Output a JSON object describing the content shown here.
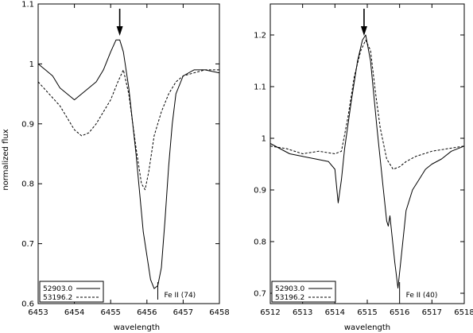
{
  "chart_data": [
    {
      "type": "line",
      "xlabel": "wavelength",
      "ylabel": "normalized flux",
      "xlim": [
        6453,
        6458
      ],
      "ylim": [
        0.6,
        1.1
      ],
      "x_ticks": [
        6453,
        6454,
        6455,
        6456,
        6457,
        6458
      ],
      "y_ticks": [
        0.6,
        0.7,
        0.8,
        0.9,
        1,
        1.1
      ],
      "x_tick_labels": [
        "6453",
        "6454",
        "6455",
        "6456",
        "6457",
        "6458"
      ],
      "y_tick_labels": [
        "0.6",
        "0.7",
        "0.8",
        "0.9",
        "1",
        "1.1"
      ],
      "arrow_x": 6455.25,
      "line_marker": {
        "x": 6456.3,
        "label": "Fe II (74)"
      },
      "legend_position": "bottom-left",
      "series": [
        {
          "name": "52903.0",
          "style": "solid",
          "x": [
            6453.0,
            6453.2,
            6453.4,
            6453.6,
            6453.8,
            6454.0,
            6454.2,
            6454.4,
            6454.6,
            6454.8,
            6455.0,
            6455.15,
            6455.25,
            6455.35,
            6455.5,
            6455.7,
            6455.9,
            6456.1,
            6456.2,
            6456.3,
            6456.4,
            6456.5,
            6456.6,
            6456.7,
            6456.8,
            6457.0,
            6457.3,
            6457.6,
            6458.0
          ],
          "y": [
            1.0,
            0.99,
            0.98,
            0.96,
            0.95,
            0.94,
            0.95,
            0.96,
            0.97,
            0.99,
            1.02,
            1.04,
            1.04,
            1.02,
            0.96,
            0.85,
            0.72,
            0.64,
            0.625,
            0.63,
            0.66,
            0.74,
            0.83,
            0.9,
            0.95,
            0.98,
            0.99,
            0.99,
            0.985
          ]
        },
        {
          "name": "53196.2",
          "style": "dashed",
          "x": [
            6453.0,
            6453.3,
            6453.6,
            6453.8,
            6454.0,
            6454.2,
            6454.4,
            6454.6,
            6454.8,
            6455.0,
            6455.2,
            6455.35,
            6455.5,
            6455.7,
            6455.85,
            6455.95,
            6456.05,
            6456.2,
            6456.4,
            6456.6,
            6456.8,
            6457.0,
            6457.3,
            6457.6,
            6458.0
          ],
          "y": [
            0.97,
            0.95,
            0.93,
            0.91,
            0.89,
            0.88,
            0.885,
            0.9,
            0.92,
            0.94,
            0.97,
            0.99,
            0.95,
            0.86,
            0.8,
            0.79,
            0.82,
            0.88,
            0.92,
            0.95,
            0.97,
            0.98,
            0.985,
            0.99,
            0.99
          ]
        }
      ]
    },
    {
      "type": "line",
      "xlabel": "wavelength",
      "ylabel": "",
      "xlim": [
        6512,
        6518
      ],
      "ylim": [
        0.68,
        1.26
      ],
      "x_ticks": [
        6512,
        6513,
        6514,
        6515,
        6516,
        6517,
        6518
      ],
      "y_ticks": [
        0.7,
        0.8,
        0.9,
        1,
        1.1,
        1.2
      ],
      "x_tick_labels": [
        "6512",
        "6513",
        "6514",
        "6515",
        "6516",
        "6517",
        "6518"
      ],
      "y_tick_labels": [
        "0.7",
        "0.8",
        "0.9",
        "1",
        "1.1",
        "1.2"
      ],
      "arrow_x": 6514.9,
      "line_marker": {
        "x": 6516.0,
        "label": "Fe II (40)"
      },
      "legend_position": "bottom-left",
      "series": [
        {
          "name": "52903.0",
          "style": "solid",
          "x": [
            6512.0,
            6512.3,
            6512.6,
            6513.0,
            6513.4,
            6513.8,
            6514.0,
            6514.1,
            6514.2,
            6514.3,
            6514.5,
            6514.7,
            6514.85,
            6514.95,
            6515.1,
            6515.3,
            6515.5,
            6515.6,
            6515.65,
            6515.7,
            6515.85,
            6515.95,
            6516.05,
            6516.2,
            6516.4,
            6516.6,
            6516.8,
            6517.0,
            6517.3,
            6517.6,
            6518.0
          ],
          "y": [
            0.99,
            0.98,
            0.97,
            0.965,
            0.96,
            0.955,
            0.94,
            0.875,
            0.92,
            0.98,
            1.07,
            1.15,
            1.19,
            1.2,
            1.15,
            1.02,
            0.9,
            0.84,
            0.83,
            0.85,
            0.76,
            0.71,
            0.77,
            0.86,
            0.9,
            0.92,
            0.94,
            0.95,
            0.96,
            0.975,
            0.985
          ]
        },
        {
          "name": "53196.2",
          "style": "dashed",
          "x": [
            6512.0,
            6512.5,
            6513.0,
            6513.5,
            6514.0,
            6514.2,
            6514.4,
            6514.6,
            6514.8,
            6514.95,
            6515.1,
            6515.25,
            6515.4,
            6515.6,
            6515.8,
            6516.0,
            6516.2,
            6516.5,
            6517.0,
            6517.5,
            6518.0
          ],
          "y": [
            0.985,
            0.98,
            0.97,
            0.975,
            0.97,
            0.975,
            1.04,
            1.12,
            1.17,
            1.19,
            1.17,
            1.09,
            1.02,
            0.96,
            0.94,
            0.945,
            0.955,
            0.965,
            0.975,
            0.98,
            0.985
          ]
        }
      ]
    }
  ]
}
